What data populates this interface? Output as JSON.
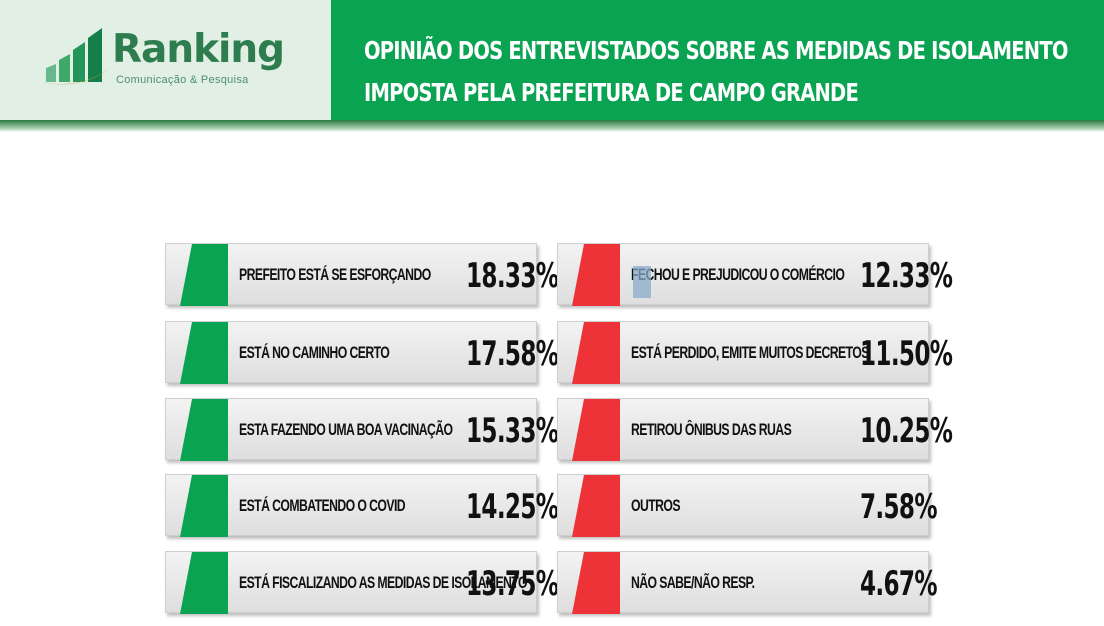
{
  "logo": {
    "name": "Ranking",
    "tagline": "Comunicação & Pesquisa"
  },
  "header": {
    "title_line1": "OPINIÃO DOS ENTREVISTADOS SOBRE AS MEDIDAS DE ISOLAMENTO",
    "title_line2": "IMPOSTA PELA PREFEITURA DE CAMPO GRANDE"
  },
  "colors": {
    "header_green": "#0aa352",
    "positive": "#0aa352",
    "negative": "#ee3338"
  },
  "chart_data": {
    "type": "table",
    "title": "OPINIÃO DOS ENTREVISTADOS SOBRE AS MEDIDAS DE ISOLAMENTO IMPOSTA PELA PREFEITURA DE CAMPO GRANDE",
    "unit": "%",
    "columns": [
      {
        "color": "#0aa352",
        "items": [
          {
            "label": "PREFEITO ESTÁ SE ESFORÇANDO",
            "value": 18.33,
            "display": "18.33%"
          },
          {
            "label": "ESTÁ NO CAMINHO CERTO",
            "value": 17.58,
            "display": "17.58%"
          },
          {
            "label": "ESTA FAZENDO UMA BOA VACINAÇÃO",
            "value": 15.33,
            "display": "15.33%"
          },
          {
            "label": "ESTÁ COMBATENDO O COVID",
            "value": 14.25,
            "display": "14.25%"
          },
          {
            "label": "ESTÁ FISCALIZANDO AS MEDIDAS DE ISOLAMENTO",
            "value": 13.75,
            "display": "13.75%"
          }
        ]
      },
      {
        "color": "#ee3338",
        "items": [
          {
            "label": "FECHOU E PREJUDICOU O COMÉRCIO",
            "value": 12.33,
            "display": "12.33%"
          },
          {
            "label": "ESTÁ PERDIDO, EMITE MUITOS DECRETOS",
            "value": 11.5,
            "display": "11.50%"
          },
          {
            "label": "RETIROU ÔNIBUS DAS RUAS",
            "value": 10.25,
            "display": "10.25%"
          },
          {
            "label": "OUTROS",
            "value": 7.58,
            "display": "7.58%"
          },
          {
            "label": "NÃO SABE/NÃO RESP.",
            "value": 4.67,
            "display": "4.67%"
          }
        ]
      }
    ]
  }
}
